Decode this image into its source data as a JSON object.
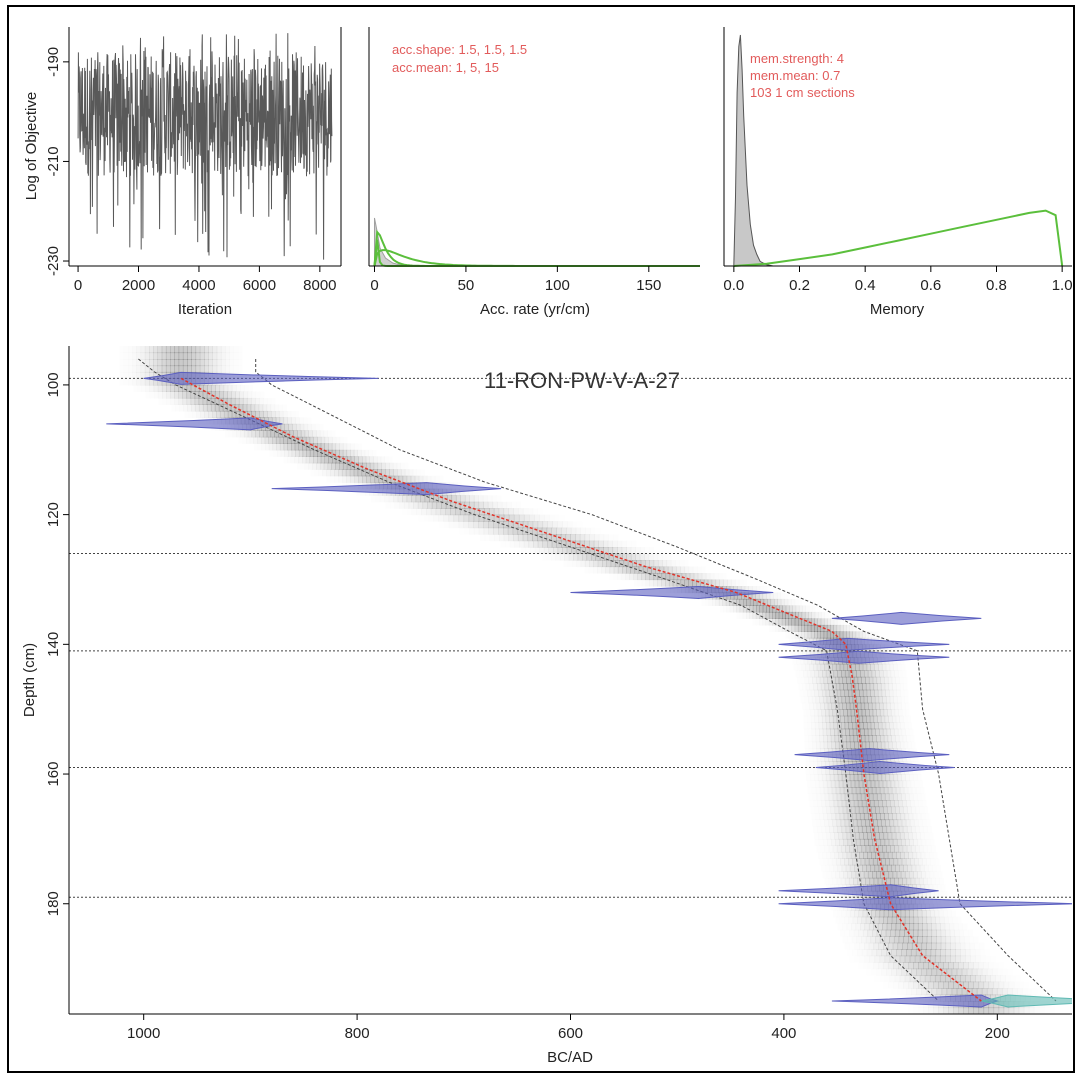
{
  "chart_data": [
    {
      "type": "line",
      "panel": "log-objective",
      "xlabel": "Iteration",
      "ylabel": "Log of Objective",
      "xlim": [
        -300,
        8700
      ],
      "ylim": [
        -231,
        -183
      ],
      "x_ticks": [
        0,
        2000,
        4000,
        6000,
        8000
      ],
      "y_ticks": [
        -190,
        -210,
        -230
      ],
      "series": [
        {
          "iterations": [
            0,
            8400
          ],
          "typical_range": [
            -213,
            -188
          ],
          "min": -230,
          "max": -184
        }
      ],
      "color": "#595959"
    },
    {
      "type": "area",
      "panel": "accumulation-rate",
      "xlabel": "Acc. rate (yr/cm)",
      "xlim": [
        -3,
        178
      ],
      "x_ticks": [
        0,
        50,
        100,
        150
      ],
      "annotations": [
        "acc.shape:  1.5, 1.5, 1.5",
        "acc.mean:  1, 5, 15"
      ],
      "prior_color": "#5bbf3c",
      "posterior_color": "#a0a0a0"
    },
    {
      "type": "area",
      "panel": "memory",
      "xlabel": "Memory",
      "xlim": [
        -0.03,
        1.03
      ],
      "x_ticks": [
        0.0,
        0.2,
        0.4,
        0.6,
        0.8,
        1.0
      ],
      "annotations": [
        "mem.strength: 4",
        "mem.mean: 0.7",
        "103 1 cm sections"
      ],
      "prior_curve": {
        "x": [
          0.0,
          0.1,
          0.2,
          0.3,
          0.4,
          0.5,
          0.6,
          0.7,
          0.8,
          0.9,
          0.95,
          0.98,
          1.0
        ],
        "y": [
          0.0,
          0.01,
          0.03,
          0.05,
          0.08,
          0.11,
          0.14,
          0.17,
          0.2,
          0.23,
          0.24,
          0.22,
          0.0
        ]
      },
      "posterior_curve": {
        "x": [
          0.0,
          0.005,
          0.01,
          0.015,
          0.02,
          0.025,
          0.03,
          0.04,
          0.05,
          0.06,
          0.07,
          0.08,
          0.1,
          0.12
        ],
        "y": [
          0.0,
          0.3,
          0.75,
          0.95,
          1.0,
          0.85,
          0.65,
          0.35,
          0.18,
          0.09,
          0.05,
          0.02,
          0.005,
          0.0
        ]
      },
      "prior_color": "#5bbf3c",
      "posterior_color": "#a0a0a0"
    },
    {
      "type": "line",
      "panel": "age-depth",
      "title": "11-RON-PW-V-A-27",
      "xlabel": "BC/AD",
      "ylabel": "Depth (cm)",
      "xlim": [
        1070,
        130
      ],
      "ylim": [
        94,
        197
      ],
      "x_ticks": [
        1000,
        800,
        600,
        400,
        200
      ],
      "y_ticks": [
        100,
        120,
        140,
        160,
        180
      ],
      "hiatus_depths": [
        99,
        126,
        141,
        159,
        179
      ],
      "median": {
        "depth": [
          99,
          103,
          108,
          113,
          118,
          123,
          128,
          132,
          136,
          138,
          140,
          145,
          150,
          160,
          170,
          180,
          188,
          195
        ],
        "age": [
          965,
          920,
          860,
          790,
          710,
          620,
          530,
          445,
          385,
          355,
          342,
          336,
          332,
          325,
          315,
          300,
          270,
          215
        ]
      },
      "lower_95": {
        "depth": [
          96,
          98,
          100,
          105,
          110,
          115,
          120,
          125,
          130,
          134,
          138,
          141,
          150,
          160,
          170,
          180,
          188,
          195
        ],
        "age": [
          1005,
          990,
          970,
          905,
          840,
          770,
          690,
          600,
          510,
          440,
          395,
          360,
          350,
          342,
          335,
          325,
          300,
          255
        ]
      },
      "upper_95": {
        "depth": [
          96,
          98,
          100,
          105,
          110,
          115,
          120,
          125,
          130,
          134,
          138,
          141,
          150,
          160,
          170,
          180,
          188,
          195
        ],
        "age": [
          895,
          895,
          880,
          820,
          760,
          680,
          580,
          500,
          425,
          368,
          325,
          275,
          270,
          255,
          245,
          235,
          190,
          145
        ]
      },
      "dates": [
        {
          "depth": 99,
          "age_min": 1000,
          "age_max": 780,
          "mode": 965
        },
        {
          "depth": 106,
          "age_min": 1035,
          "age_max": 870,
          "mode": 900
        },
        {
          "depth": 116,
          "age_min": 880,
          "age_max": 665,
          "mode": 735
        },
        {
          "depth": 132,
          "age_min": 600,
          "age_max": 410,
          "mode": 480
        },
        {
          "depth": 136,
          "age_min": 355,
          "age_max": 215,
          "mode": 290
        },
        {
          "depth": 140,
          "age_min": 405,
          "age_max": 245,
          "mode": 340
        },
        {
          "depth": 142,
          "age_min": 405,
          "age_max": 245,
          "mode": 330
        },
        {
          "depth": 157,
          "age_min": 390,
          "age_max": 245,
          "mode": 320
        },
        {
          "depth": 159,
          "age_min": 370,
          "age_max": 240,
          "mode": 310
        },
        {
          "depth": 178,
          "age_min": 405,
          "age_max": 255,
          "mode": 300
        },
        {
          "depth": 180,
          "age_min": 405,
          "age_max": 125,
          "mode": 300
        },
        {
          "depth": 195,
          "age_min": 355,
          "age_max": 200,
          "mode": 215
        }
      ],
      "calendar_dates": [
        {
          "depth": 195,
          "age_min": 215,
          "age_max": 80,
          "mode": 190
        }
      ],
      "date_color": "#5b5fc0",
      "calendar_color": "#5fb9b3",
      "median_color": "#e0342a"
    }
  ]
}
